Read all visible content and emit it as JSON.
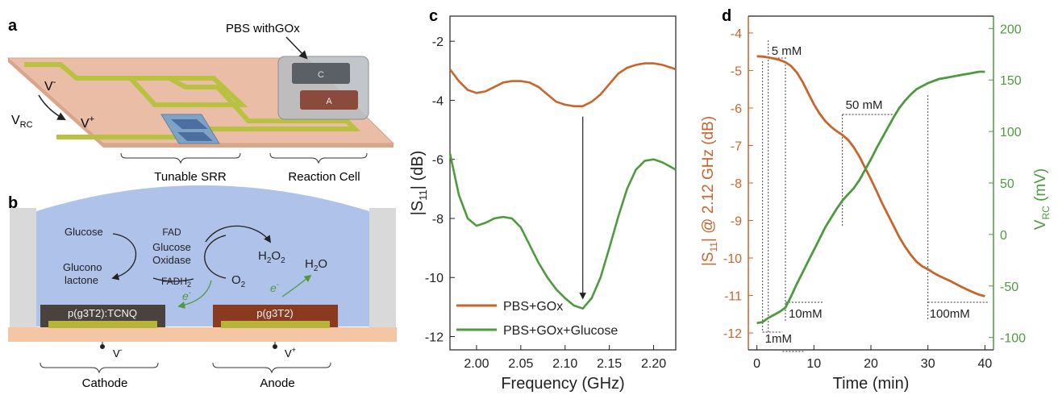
{
  "panels": {
    "a": {
      "letter": "a",
      "callout": "PBS withGOx",
      "v_minus": "V",
      "v_minus_sup": "-",
      "v_rc": "V",
      "v_rc_sub": "RC",
      "v_plus": "V",
      "v_plus_sup": "+",
      "cell_c": "C",
      "cell_a": "A",
      "caption_srr": "Tunable SRR",
      "caption_cell": "Reaction Cell"
    },
    "b": {
      "letter": "b",
      "glucose": "Glucose",
      "glucono1": "Glucono",
      "glucono2": "lactone",
      "fad": "FAD",
      "gox1": "Glucose",
      "gox2": "Oxidase",
      "fadh2": "FADH",
      "fadh2_sub": "2",
      "o2": "O",
      "o2_sub": "2",
      "h2o2_a": "H",
      "h2o2_sub1": "2",
      "h2o2_b": "O",
      "h2o2_sub2": "2",
      "h2o_a": "H",
      "h2o_sub": "2",
      "h2o_b": "O",
      "electron": "e",
      "electron_sup": "-",
      "cathode_material": "p(g3T2):TCNQ",
      "anode_material": "p(g3T2)",
      "v_minus": "V",
      "v_minus_sup": "-",
      "v_plus": "V",
      "v_plus_sup": "+",
      "cathode": "Cathode",
      "anode": "Anode"
    },
    "c": {
      "letter": "c"
    },
    "d": {
      "letter": "d"
    }
  },
  "colors": {
    "orange": "#c8652c",
    "green": "#4e9a3f",
    "substrate": "#e8b9a0",
    "electrolyte": "#aec2ea",
    "srr": "#b8c240"
  },
  "chart_data": [
    {
      "panel": "c",
      "type": "line",
      "xlabel": "Frequency (GHz)",
      "ylabel": "|S11| (dB)",
      "ylabel_main": "|S",
      "ylabel_sub": "11",
      "ylabel_tail": "| (dB)",
      "xlim": [
        1.97,
        2.225
      ],
      "ylim": [
        -12.45,
        -1.15
      ],
      "xticks": [
        2.0,
        2.05,
        2.1,
        2.15,
        2.2
      ],
      "xtick_labels": [
        "2.00",
        "2.05",
        "2.10",
        "2.15",
        "2.20"
      ],
      "yticks": [
        -2,
        -4,
        -6,
        -8,
        -10,
        -12
      ],
      "ytick_labels": [
        "-2",
        "-4",
        "-6",
        "-8",
        "-10",
        "-12"
      ],
      "legend": "bottom-right",
      "annotation": "downward arrow at 2.12 GHz from -4.2 to -10.9 dB",
      "series": [
        {
          "name": "PBS+GOx",
          "color": "#c8652c",
          "x": [
            1.97,
            1.98,
            1.99,
            2.0,
            2.01,
            2.02,
            2.03,
            2.04,
            2.05,
            2.06,
            2.07,
            2.08,
            2.09,
            2.1,
            2.11,
            2.12,
            2.13,
            2.14,
            2.15,
            2.16,
            2.17,
            2.18,
            2.19,
            2.2,
            2.21,
            2.225
          ],
          "y": [
            -2.95,
            -3.35,
            -3.65,
            -3.75,
            -3.7,
            -3.55,
            -3.4,
            -3.35,
            -3.35,
            -3.4,
            -3.55,
            -3.8,
            -4.05,
            -4.15,
            -4.2,
            -4.2,
            -4.05,
            -3.8,
            -3.45,
            -3.1,
            -2.9,
            -2.8,
            -2.75,
            -2.75,
            -2.8,
            -2.95
          ]
        },
        {
          "name": "PBS+GOx+Glucose",
          "color": "#4e9a3f",
          "x": [
            1.97,
            1.98,
            1.99,
            2.0,
            2.01,
            2.02,
            2.03,
            2.04,
            2.05,
            2.06,
            2.07,
            2.08,
            2.09,
            2.1,
            2.11,
            2.12,
            2.13,
            2.14,
            2.15,
            2.16,
            2.17,
            2.18,
            2.19,
            2.2,
            2.21,
            2.225
          ],
          "y": [
            -5.8,
            -7.2,
            -8.0,
            -8.25,
            -8.15,
            -8.0,
            -7.95,
            -8.0,
            -8.3,
            -8.9,
            -9.5,
            -10.0,
            -10.4,
            -10.7,
            -10.95,
            -11.05,
            -10.7,
            -10.0,
            -9.0,
            -7.95,
            -7.0,
            -6.35,
            -6.05,
            -6.0,
            -6.1,
            -6.35
          ]
        }
      ]
    },
    {
      "panel": "d",
      "type": "line",
      "xlabel": "Time (min)",
      "ylabel_left": "|S11| @ 2.12 GHz (dB)",
      "ylabel_left_main": "|S",
      "ylabel_left_sub": "11",
      "ylabel_left_tail": "| @ 2.12 GHz (dB)",
      "ylabel_right": "VRC (mV)",
      "ylabel_right_main": "V",
      "ylabel_right_sub": "RC",
      "ylabel_right_tail": " (mV)",
      "xlim": [
        -1.5,
        41.5
      ],
      "ylim_left": [
        -12.45,
        -3.55
      ],
      "ylim_right": [
        -112,
        212
      ],
      "xticks": [
        0,
        10,
        20,
        30,
        40
      ],
      "xtick_labels": [
        "0",
        "10",
        "20",
        "30",
        "40"
      ],
      "yticks_left": [
        -4,
        -5,
        -6,
        -7,
        -8,
        -9,
        -10,
        -11,
        -12
      ],
      "ytick_labels_left": [
        "-4",
        "-5",
        "-6",
        "-7",
        "-8",
        "-9",
        "-10",
        "-11",
        "-12"
      ],
      "yticks_right": [
        200,
        150,
        100,
        50,
        0,
        -50,
        -100
      ],
      "ytick_labels_right": [
        "200",
        "150",
        "100",
        "50",
        "0",
        "-50",
        "-100"
      ],
      "injections": [
        {
          "label": "1mM",
          "time": 1.0
        },
        {
          "label": "5 mM",
          "time": 2.0
        },
        {
          "label": "10mM",
          "time": 5.0
        },
        {
          "label": "50 mM",
          "time": 15.0
        },
        {
          "label": "100mM",
          "time": 30.0
        }
      ],
      "series": [
        {
          "name": "|S11| @ 2.12 GHz",
          "axis": "left",
          "color": "#c8652c",
          "x": [
            0,
            1,
            2,
            3,
            4,
            5,
            6,
            7,
            8,
            9,
            10,
            11,
            12,
            13,
            14,
            15,
            16,
            17,
            18,
            19,
            20,
            21,
            22,
            23,
            24,
            25,
            26,
            27,
            28,
            29,
            30,
            31,
            32,
            33,
            34,
            35,
            36,
            37,
            38,
            39,
            40
          ],
          "y": [
            -4.62,
            -4.63,
            -4.65,
            -4.68,
            -4.72,
            -4.78,
            -4.88,
            -5.05,
            -5.3,
            -5.6,
            -5.9,
            -6.15,
            -6.35,
            -6.5,
            -6.62,
            -6.72,
            -6.85,
            -7.05,
            -7.3,
            -7.6,
            -7.9,
            -8.22,
            -8.55,
            -8.85,
            -9.15,
            -9.45,
            -9.7,
            -9.92,
            -10.1,
            -10.22,
            -10.3,
            -10.4,
            -10.48,
            -10.55,
            -10.62,
            -10.7,
            -10.78,
            -10.85,
            -10.92,
            -10.98,
            -11.02
          ]
        },
        {
          "name": "VRC",
          "axis": "right",
          "color": "#4e9a3f",
          "x": [
            0,
            1,
            2,
            3,
            4,
            5,
            6,
            7,
            8,
            9,
            10,
            11,
            12,
            13,
            14,
            15,
            16,
            17,
            18,
            19,
            20,
            21,
            22,
            23,
            24,
            25,
            26,
            27,
            28,
            29,
            30,
            31,
            32,
            33,
            34,
            35,
            36,
            37,
            38,
            39,
            40
          ],
          "y": [
            -86,
            -85,
            -81,
            -78,
            -75,
            -71,
            -60,
            -48,
            -37,
            -26,
            -15,
            -4,
            7,
            16,
            25,
            33,
            39,
            45,
            53,
            63,
            73,
            84,
            94,
            104,
            114,
            123,
            130,
            136,
            141,
            144,
            147,
            149,
            151,
            152,
            153,
            154,
            155,
            156,
            157,
            158,
            158
          ]
        }
      ]
    }
  ]
}
